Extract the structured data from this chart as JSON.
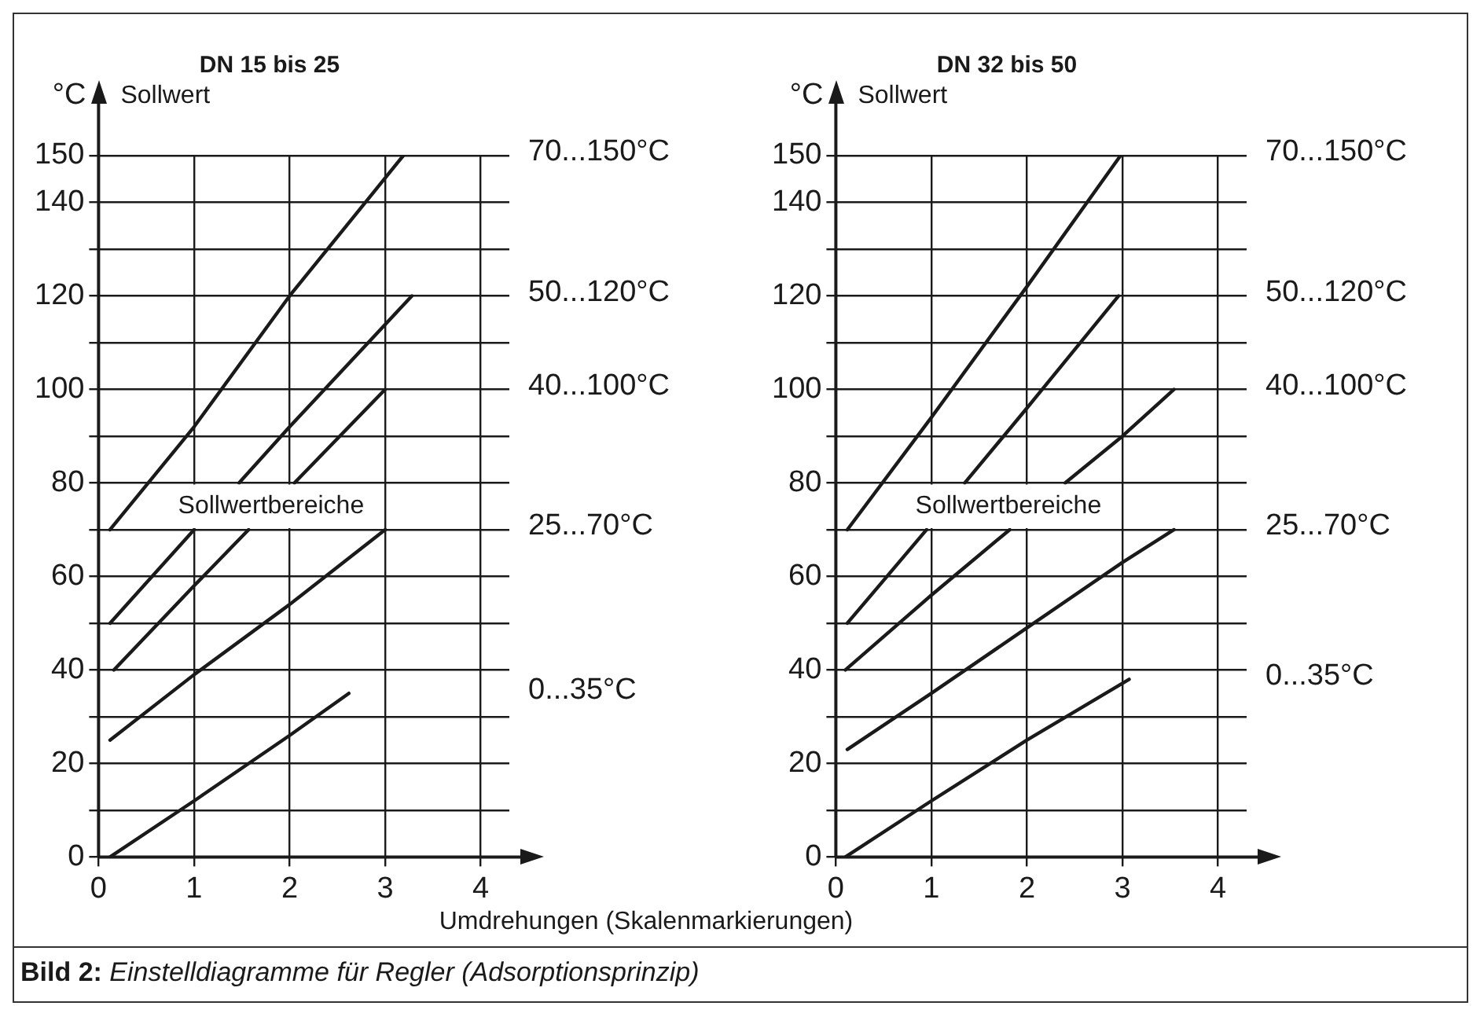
{
  "chart_data": [
    {
      "type": "line",
      "title": "DN 15 bis 25",
      "xlabel": "Umdrehungen (Skalenmarkierungen)",
      "ylabel": "Sollwert",
      "xlim": [
        0,
        4.3
      ],
      "xticks": [
        0,
        1,
        2,
        3,
        4
      ],
      "ylim": [
        0,
        150
      ],
      "yticks": [
        0,
        {
          "value": 10,
          "label": null
        },
        20,
        {
          "value": 30,
          "label": null
        },
        40,
        {
          "value": 50,
          "label": null
        },
        60,
        {
          "value": 70,
          "label": null
        },
        80,
        {
          "value": 90,
          "label": null
        },
        100,
        {
          "value": 110,
          "label": null
        },
        120,
        {
          "value": 130,
          "label": null
        },
        140,
        150
      ],
      "grid": true,
      "legend": false,
      "marker": "none",
      "line_style": "solid",
      "annotations": [
        "°C",
        "Sollwertbereiche"
      ],
      "series": [
        {
          "name": "70...150°C",
          "color": "#1a1a1a",
          "x": [
            0.12,
            1,
            2,
            3.19
          ],
          "values": [
            70,
            92,
            120,
            150
          ]
        },
        {
          "name": "50...120°C",
          "color": "#1a1a1a",
          "x": [
            0.12,
            1,
            1.2,
            1.47,
            2,
            3.28
          ],
          "values": [
            50,
            70,
            null,
            80,
            92,
            120
          ]
        },
        {
          "name": "40...100°C",
          "color": "#1a1a1a",
          "x": [
            0.16,
            1,
            1.57,
            1.8,
            2.05,
            3
          ],
          "values": [
            40,
            58,
            70,
            null,
            80,
            100
          ]
        },
        {
          "name": "25...70°C",
          "color": "#1a1a1a",
          "x": [
            0.12,
            1,
            2,
            3
          ],
          "values": [
            25,
            39,
            54,
            70
          ]
        },
        {
          "name": "0...35°C",
          "color": "#1a1a1a",
          "x": [
            0.12,
            1,
            2,
            2.62
          ],
          "values": [
            0,
            12,
            26,
            35
          ]
        }
      ]
    },
    {
      "type": "line",
      "title": "DN 32 bis 50",
      "ylabel": "Sollwert",
      "xlim": [
        0,
        4.3
      ],
      "xticks": [
        0,
        1,
        2,
        3,
        4
      ],
      "ylim": [
        0,
        150
      ],
      "yticks": [
        0,
        {
          "value": 10,
          "label": null
        },
        20,
        {
          "value": 30,
          "label": null
        },
        40,
        {
          "value": 50,
          "label": null
        },
        60,
        {
          "value": 70,
          "label": null
        },
        80,
        {
          "value": 90,
          "label": null
        },
        100,
        {
          "value": 110,
          "label": null
        },
        120,
        {
          "value": 130,
          "label": null
        },
        140,
        150
      ],
      "grid": true,
      "legend": false,
      "marker": "none",
      "line_style": "solid",
      "annotations": [
        "°C",
        "Sollwertbereiche",
        "Bild 2: Einstelldiagramme für Regler (Adsorptionsprinzip)"
      ],
      "series": [
        {
          "name": "70...150°C",
          "color": "#1a1a1a",
          "x": [
            0.12,
            1,
            2,
            2.98
          ],
          "values": [
            70,
            94,
            122,
            150
          ]
        },
        {
          "name": "50...120°C",
          "color": "#1a1a1a",
          "x": [
            0.12,
            0.95,
            1.1,
            1.35,
            2,
            2.96
          ],
          "values": [
            50,
            70,
            null,
            80,
            96,
            120
          ]
        },
        {
          "name": "40...100°C",
          "color": "#1a1a1a",
          "x": [
            0.1,
            1,
            1.82,
            2.1,
            2.4,
            3,
            3.54
          ],
          "values": [
            40,
            56,
            70,
            null,
            80,
            90,
            100
          ]
        },
        {
          "name": "25...70°C",
          "color": "#1a1a1a",
          "x": [
            0.12,
            1,
            2,
            3,
            3.54
          ],
          "values": [
            23,
            35,
            49,
            63,
            70
          ]
        },
        {
          "name": "0...35°C",
          "color": "#1a1a1a",
          "x": [
            0.1,
            1,
            2,
            3.07
          ],
          "values": [
            0,
            12,
            25,
            38
          ]
        }
      ]
    }
  ]
}
